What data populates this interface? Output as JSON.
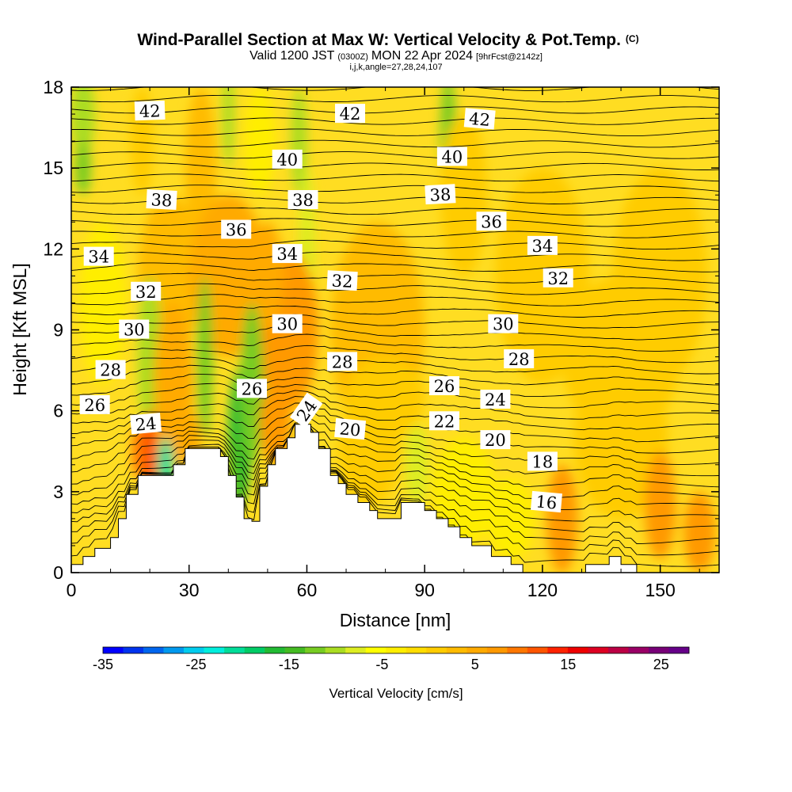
{
  "chart_data": {
    "type": "heatmap",
    "title": "Wind-Parallel Section at Max W: Vertical Velocity & Pot.Temp.",
    "title_mark": "(C)",
    "subtitle_main": "Valid 1200 JST",
    "subtitle_z": "(0300Z)",
    "subtitle_date": "MON 22 Apr 2024",
    "subtitle_fcst": "[9hrFcst@2142z]",
    "subtitle2": "i,j,k,angle=27,28,24,107",
    "xlabel": "Distance [nm]",
    "ylabel": "Height [Kft MSL]",
    "xlim": [
      0,
      165
    ],
    "ylim": [
      0,
      18
    ],
    "x_ticks": [
      0,
      30,
      60,
      90,
      120,
      150
    ],
    "y_ticks": [
      0,
      3,
      6,
      9,
      12,
      15,
      18
    ],
    "colorbar": {
      "label": "Vertical Velocity [cm/s]",
      "min": -35,
      "max": 28,
      "tick_values": [
        -35,
        -25,
        -15,
        -5,
        5,
        15,
        25
      ],
      "colors": [
        "#0000ff",
        "#0033ee",
        "#0066ee",
        "#0099ee",
        "#00ccee",
        "#00eedd",
        "#00dd99",
        "#00cc66",
        "#22bb33",
        "#44bb22",
        "#77cc22",
        "#aadd22",
        "#dded22",
        "#ffff00",
        "#ffee00",
        "#ffdd00",
        "#ffcc00",
        "#ffbb00",
        "#ffaa00",
        "#ff9900",
        "#ff7700",
        "#ff5500",
        "#ff2200",
        "#ee0000",
        "#dd0022",
        "#bb0044",
        "#990066",
        "#770077",
        "#660088"
      ]
    },
    "theta_contour_labels": [
      {
        "text": "42",
        "x": 20,
        "y": 17.1,
        "angle": -2
      },
      {
        "text": "42",
        "x": 71,
        "y": 17.0,
        "angle": 0
      },
      {
        "text": "42",
        "x": 104,
        "y": 16.8,
        "angle": 5
      },
      {
        "text": "40",
        "x": 55,
        "y": 15.3,
        "angle": 0
      },
      {
        "text": "40",
        "x": 97,
        "y": 15.4,
        "angle": 0
      },
      {
        "text": "38",
        "x": 23,
        "y": 13.8,
        "angle": 3
      },
      {
        "text": "38",
        "x": 59,
        "y": 13.8,
        "angle": 0
      },
      {
        "text": "38",
        "x": 94,
        "y": 14.0,
        "angle": -3
      },
      {
        "text": "36",
        "x": 42,
        "y": 12.7,
        "angle": 0
      },
      {
        "text": "36",
        "x": 107,
        "y": 13.0,
        "angle": 0
      },
      {
        "text": "34",
        "x": 7,
        "y": 11.7,
        "angle": 0
      },
      {
        "text": "34",
        "x": 55,
        "y": 11.8,
        "angle": 0
      },
      {
        "text": "34",
        "x": 120,
        "y": 12.1,
        "angle": 0
      },
      {
        "text": "32",
        "x": 19,
        "y": 10.4,
        "angle": 0
      },
      {
        "text": "32",
        "x": 69,
        "y": 10.8,
        "angle": 3
      },
      {
        "text": "32",
        "x": 124,
        "y": 10.9,
        "angle": 0
      },
      {
        "text": "30",
        "x": 16,
        "y": 9.0,
        "angle": 0
      },
      {
        "text": "30",
        "x": 55,
        "y": 9.2,
        "angle": 0
      },
      {
        "text": "30",
        "x": 110,
        "y": 9.2,
        "angle": 0
      },
      {
        "text": "28",
        "x": 10,
        "y": 7.5,
        "angle": 0
      },
      {
        "text": "28",
        "x": 69,
        "y": 7.8,
        "angle": 0
      },
      {
        "text": "28",
        "x": 114,
        "y": 7.9,
        "angle": 0
      },
      {
        "text": "26",
        "x": 6,
        "y": 6.2,
        "angle": 0
      },
      {
        "text": "26",
        "x": 46,
        "y": 6.8,
        "angle": 0
      },
      {
        "text": "26",
        "x": 95,
        "y": 6.9,
        "angle": 0
      },
      {
        "text": "24",
        "x": 19,
        "y": 5.5,
        "angle": -5
      },
      {
        "text": "24",
        "x": 60,
        "y": 6.0,
        "angle": -55
      },
      {
        "text": "24",
        "x": 108,
        "y": 6.4,
        "angle": 0
      },
      {
        "text": "22",
        "x": 95,
        "y": 5.6,
        "angle": 0
      },
      {
        "text": "20",
        "x": 71,
        "y": 5.3,
        "angle": 5
      },
      {
        "text": "20",
        "x": 108,
        "y": 4.9,
        "angle": 0
      },
      {
        "text": "18",
        "x": 120,
        "y": 4.1,
        "angle": 0
      },
      {
        "text": "16",
        "x": 121,
        "y": 2.6,
        "angle": 5
      }
    ],
    "terrain_profile": [
      [
        0,
        0.3
      ],
      [
        3,
        0.3
      ],
      [
        3,
        0.6
      ],
      [
        6,
        0.6
      ],
      [
        6,
        0.9
      ],
      [
        10,
        0.9
      ],
      [
        10,
        1.3
      ],
      [
        12,
        1.3
      ],
      [
        12,
        2.0
      ],
      [
        14,
        2.0
      ],
      [
        14,
        2.9
      ],
      [
        17,
        2.9
      ],
      [
        17,
        3.6
      ],
      [
        26,
        3.6
      ],
      [
        26,
        4.0
      ],
      [
        29,
        4.0
      ],
      [
        29,
        4.6
      ],
      [
        38,
        4.6
      ],
      [
        38,
        4.3
      ],
      [
        40,
        4.3
      ],
      [
        40,
        3.6
      ],
      [
        42,
        3.6
      ],
      [
        42,
        2.8
      ],
      [
        44,
        2.8
      ],
      [
        44,
        2.0
      ],
      [
        46,
        2.0
      ],
      [
        46,
        1.9
      ],
      [
        48,
        1.9
      ],
      [
        48,
        3.2
      ],
      [
        50,
        3.2
      ],
      [
        50,
        4.0
      ],
      [
        52,
        4.0
      ],
      [
        52,
        4.6
      ],
      [
        55,
        4.6
      ],
      [
        55,
        5.0
      ],
      [
        57,
        5.0
      ],
      [
        57,
        5.5
      ],
      [
        61,
        5.5
      ],
      [
        61,
        5.2
      ],
      [
        63,
        5.2
      ],
      [
        63,
        4.6
      ],
      [
        66,
        4.6
      ],
      [
        66,
        3.6
      ],
      [
        68,
        3.6
      ],
      [
        68,
        3.3
      ],
      [
        70,
        3.3
      ],
      [
        70,
        2.9
      ],
      [
        73,
        2.9
      ],
      [
        73,
        2.6
      ],
      [
        76,
        2.6
      ],
      [
        76,
        2.3
      ],
      [
        78,
        2.3
      ],
      [
        78,
        2.0
      ],
      [
        84,
        2.0
      ],
      [
        84,
        2.6
      ],
      [
        90,
        2.6
      ],
      [
        90,
        2.3
      ],
      [
        93,
        2.3
      ],
      [
        93,
        2.0
      ],
      [
        96,
        2.0
      ],
      [
        96,
        1.7
      ],
      [
        99,
        1.7
      ],
      [
        99,
        1.3
      ],
      [
        102,
        1.3
      ],
      [
        102,
        1.0
      ],
      [
        107,
        1.0
      ],
      [
        107,
        0.6
      ],
      [
        112,
        0.6
      ],
      [
        112,
        0.3
      ],
      [
        115,
        0.3
      ],
      [
        115,
        0.0
      ],
      [
        131,
        0.0
      ],
      [
        131,
        0.3
      ],
      [
        137,
        0.3
      ],
      [
        137,
        0.6
      ],
      [
        140,
        0.6
      ],
      [
        140,
        0.3
      ],
      [
        144,
        0.3
      ],
      [
        144,
        0.0
      ],
      [
        165,
        0.0
      ]
    ]
  }
}
